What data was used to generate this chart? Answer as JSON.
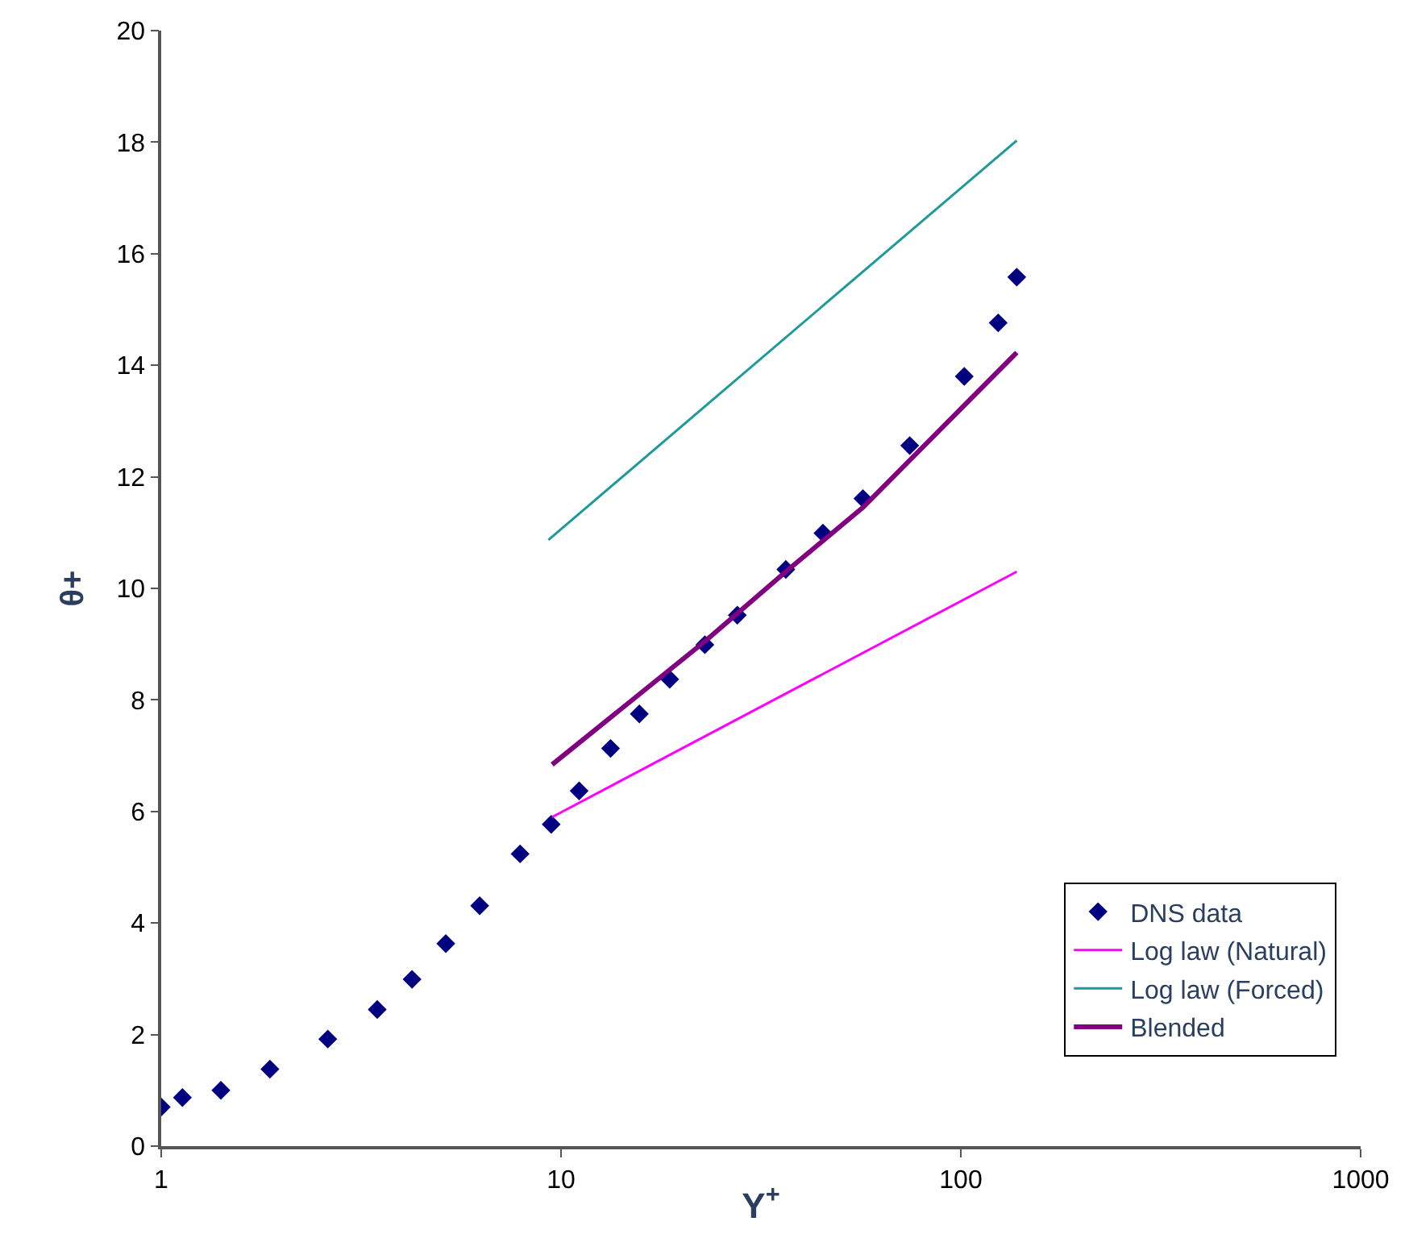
{
  "chart_data": {
    "type": "scatter",
    "xlabel": "Y$^{+}$",
    "ylabel": "θ+",
    "log": "x",
    "xlim": [
      1,
      1000
    ],
    "xticks": [
      1,
      10,
      100,
      1000
    ],
    "ylim": [
      0,
      20
    ],
    "yticks": [
      0,
      2,
      4,
      6,
      8,
      10,
      12,
      14,
      16,
      18,
      20
    ],
    "legend": "bottom right",
    "series": [
      {
        "name": "DNS data",
        "marker": "diamond",
        "color": "#000080",
        "x": [
          1.0,
          1.13,
          1.41,
          1.87,
          2.61,
          3.47,
          4.24,
          5.15,
          6.26,
          7.9,
          9.45,
          11.1,
          13.3,
          15.7,
          18.7,
          22.9,
          27.6,
          36.5,
          45.2,
          56.9,
          74.5,
          102,
          124,
          138
        ],
        "values": [
          0.7,
          0.87,
          1.0,
          1.38,
          1.92,
          2.45,
          2.99,
          3.63,
          4.31,
          5.24,
          5.77,
          6.37,
          7.13,
          7.75,
          8.37,
          8.99,
          9.52,
          10.34,
          10.99,
          11.61,
          12.56,
          13.8,
          14.76,
          15.58
        ]
      },
      {
        "name": "Log law (Natural)",
        "type": "line",
        "marker": "none",
        "color": "#ff00ff",
        "x": [
          9.5,
          138
        ],
        "values": [
          5.9,
          10.3
        ]
      },
      {
        "name": "Log law (Forced)",
        "type": "line",
        "marker": "none",
        "color": "#1f9a9a",
        "x": [
          9.3,
          138
        ],
        "values": [
          10.87,
          18.03
        ]
      },
      {
        "name": "Blended",
        "type": "line",
        "marker": "none",
        "color": "#800080",
        "x": [
          9.5,
          22.9,
          36.5,
          56.9,
          138
        ],
        "values": [
          6.84,
          9.05,
          10.3,
          11.45,
          14.23
        ]
      }
    ]
  }
}
